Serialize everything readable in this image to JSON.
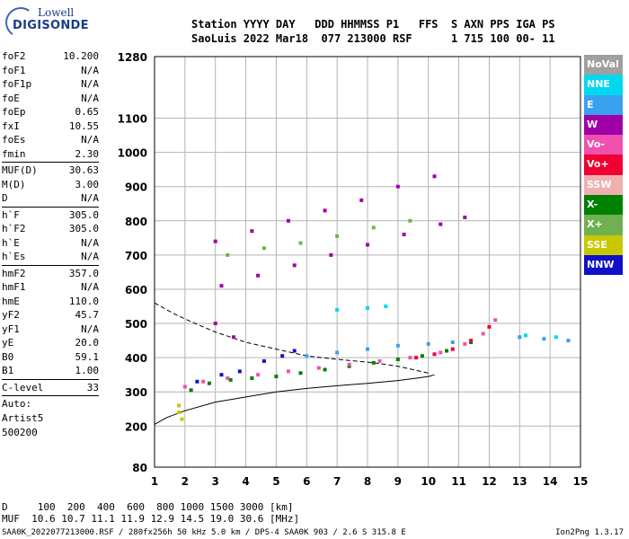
{
  "logo": {
    "brand": "Lowell",
    "product": "DIGISONDE"
  },
  "header": {
    "line1": "Station YYYY DAY   DDD HHMMSS P1   FFS  S AXN PPS IGA PS",
    "line2": "SaoLuis 2022 Mar18  077 213000 RSF      1 715 100 00- 11"
  },
  "params": {
    "group1": [
      {
        "k": "foF2",
        "v": "10.200"
      },
      {
        "k": "foF1",
        "v": "N/A"
      },
      {
        "k": "foF1p",
        "v": "N/A"
      },
      {
        "k": "foE",
        "v": "N/A"
      },
      {
        "k": "foEp",
        "v": "0.65"
      },
      {
        "k": "fxI",
        "v": "10.55"
      },
      {
        "k": "foEs",
        "v": "N/A"
      },
      {
        "k": "fmin",
        "v": "2.30"
      }
    ],
    "group2": [
      {
        "k": "MUF(D)",
        "v": "30.63"
      },
      {
        "k": "M(D)",
        "v": "3.00"
      },
      {
        "k": "D",
        "v": "N/A"
      }
    ],
    "group3": [
      {
        "k": "h`F",
        "v": "305.0"
      },
      {
        "k": "h`F2",
        "v": "305.0"
      },
      {
        "k": "h`E",
        "v": "N/A"
      },
      {
        "k": "h`Es",
        "v": "N/A"
      }
    ],
    "group4": [
      {
        "k": "hmF2",
        "v": "357.0"
      },
      {
        "k": "hmF1",
        "v": "N/A"
      },
      {
        "k": "hmE",
        "v": "110.0"
      },
      {
        "k": "yF2",
        "v": "45.7"
      },
      {
        "k": "yF1",
        "v": "N/A"
      },
      {
        "k": "yE",
        "v": "20.0"
      },
      {
        "k": "B0",
        "v": "59.1"
      },
      {
        "k": "B1",
        "v": "1.00"
      }
    ],
    "group5": [
      {
        "k": "C-level",
        "v": "33"
      }
    ],
    "auto": [
      "Auto:",
      "Artist5",
      "500200"
    ]
  },
  "legend": [
    {
      "label": "NoVal",
      "color": "#a0a0a0"
    },
    {
      "label": "NNE",
      "color": "#00d8f0"
    },
    {
      "label": "E",
      "color": "#3aa0f0"
    },
    {
      "label": "W",
      "color": "#a000a8"
    },
    {
      "label": "Vo-",
      "color": "#f050b0"
    },
    {
      "label": "Vo+",
      "color": "#f00030"
    },
    {
      "label": "SSW",
      "color": "#f0b0b0"
    },
    {
      "label": "X-",
      "color": "#008000"
    },
    {
      "label": "X+",
      "color": "#70b050"
    },
    {
      "label": "SSE",
      "color": "#c8c800"
    },
    {
      "label": "NNW",
      "color": "#1010c8"
    }
  ],
  "bottom": {
    "line1": "D     100  200  400  600  800 1000 1500 3000 [km]",
    "line2": "MUF  10.6 10.7 11.1 11.9 12.9 14.5 19.0 30.6 [MHz]"
  },
  "footer": {
    "left": "SAA0K_2022077213000.RSF / 280fx256h 50 kHz 5.0 km / DPS-4 SAA0K 903 / 2.6 S 315.8 E",
    "right": "Ion2Png 1.3.17"
  },
  "chart_data": {
    "type": "scatter",
    "title": "",
    "xlabel": "",
    "ylabel": "",
    "xlim": [
      1,
      15
    ],
    "ylim": [
      80,
      1280
    ],
    "xticks": [
      1,
      2,
      3,
      4,
      5,
      6,
      7,
      8,
      9,
      10,
      11,
      12,
      13,
      14,
      15
    ],
    "yticks": [
      80,
      200,
      300,
      400,
      500,
      600,
      700,
      800,
      900,
      1000,
      1100,
      1280
    ],
    "grid": true,
    "series": [
      {
        "name": "X-",
        "color": "#008000",
        "x": [
          2.2,
          2.8,
          3.5,
          4.2,
          5.0,
          5.8,
          6.6,
          7.4,
          8.2,
          9.0,
          9.8,
          10.6,
          11.4
        ],
        "y": [
          305,
          325,
          335,
          340,
          345,
          355,
          365,
          375,
          385,
          395,
          405,
          420,
          445
        ]
      },
      {
        "name": "Vo-",
        "color": "#f050b0",
        "x": [
          2.0,
          2.6,
          3.4,
          4.4,
          5.4,
          6.4,
          7.4,
          8.4,
          9.4,
          10.4,
          11.2,
          11.8,
          12.2
        ],
        "y": [
          315,
          330,
          340,
          350,
          360,
          370,
          380,
          390,
          400,
          415,
          440,
          470,
          510
        ]
      },
      {
        "name": "Vo+",
        "color": "#f00030",
        "x": [
          9.6,
          10.2,
          10.8,
          11.4,
          12.0
        ],
        "y": [
          400,
          410,
          425,
          450,
          490
        ]
      },
      {
        "name": "E",
        "color": "#3aa0f0",
        "x": [
          6.0,
          7.0,
          8.0,
          9.0,
          10.0,
          10.8,
          13.0,
          13.8,
          14.6
        ],
        "y": [
          405,
          415,
          425,
          435,
          440,
          445,
          460,
          455,
          450
        ]
      },
      {
        "name": "NNE",
        "color": "#00d8f0",
        "x": [
          7.0,
          8.0,
          8.6,
          13.2,
          14.2
        ],
        "y": [
          540,
          545,
          550,
          465,
          460
        ]
      },
      {
        "name": "W",
        "color": "#a000a8",
        "x": [
          3.0,
          4.2,
          5.4,
          6.6,
          7.8,
          9.0,
          10.2,
          3.2,
          4.4,
          5.6,
          6.8,
          8.0,
          9.2,
          10.4,
          11.2,
          3.0,
          3.6
        ],
        "y": [
          740,
          770,
          800,
          830,
          860,
          900,
          930,
          610,
          640,
          670,
          700,
          730,
          760,
          790,
          810,
          500,
          460
        ]
      },
      {
        "name": "NNW",
        "color": "#1010c8",
        "x": [
          2.4,
          3.2,
          3.8,
          4.6,
          5.2,
          5.6
        ],
        "y": [
          330,
          350,
          360,
          390,
          405,
          420
        ]
      },
      {
        "name": "X+",
        "color": "#70b050",
        "x": [
          3.4,
          4.6,
          5.8,
          7.0,
          8.2,
          9.4
        ],
        "y": [
          700,
          720,
          735,
          755,
          780,
          800
        ]
      },
      {
        "name": "SSE",
        "color": "#c8c800",
        "x": [
          1.8,
          1.8,
          1.9
        ],
        "y": [
          260,
          240,
          220
        ]
      }
    ],
    "profile_curve": {
      "x": [
        1.0,
        1.4,
        2.0,
        3.0,
        4.0,
        5.0,
        6.0,
        7.0,
        8.0,
        9.0,
        9.6,
        10.0,
        10.2
      ],
      "y": [
        205,
        225,
        245,
        270,
        285,
        300,
        310,
        318,
        325,
        333,
        340,
        345,
        350
      ]
    },
    "dashed_curve": {
      "x": [
        1.0,
        1.6,
        2.2,
        3.0,
        4.0,
        5.0,
        6.0,
        7.0,
        7.6,
        8.2,
        9.0,
        10.0
      ],
      "y": [
        560,
        530,
        505,
        475,
        445,
        425,
        405,
        395,
        390,
        385,
        375,
        355
      ]
    }
  }
}
